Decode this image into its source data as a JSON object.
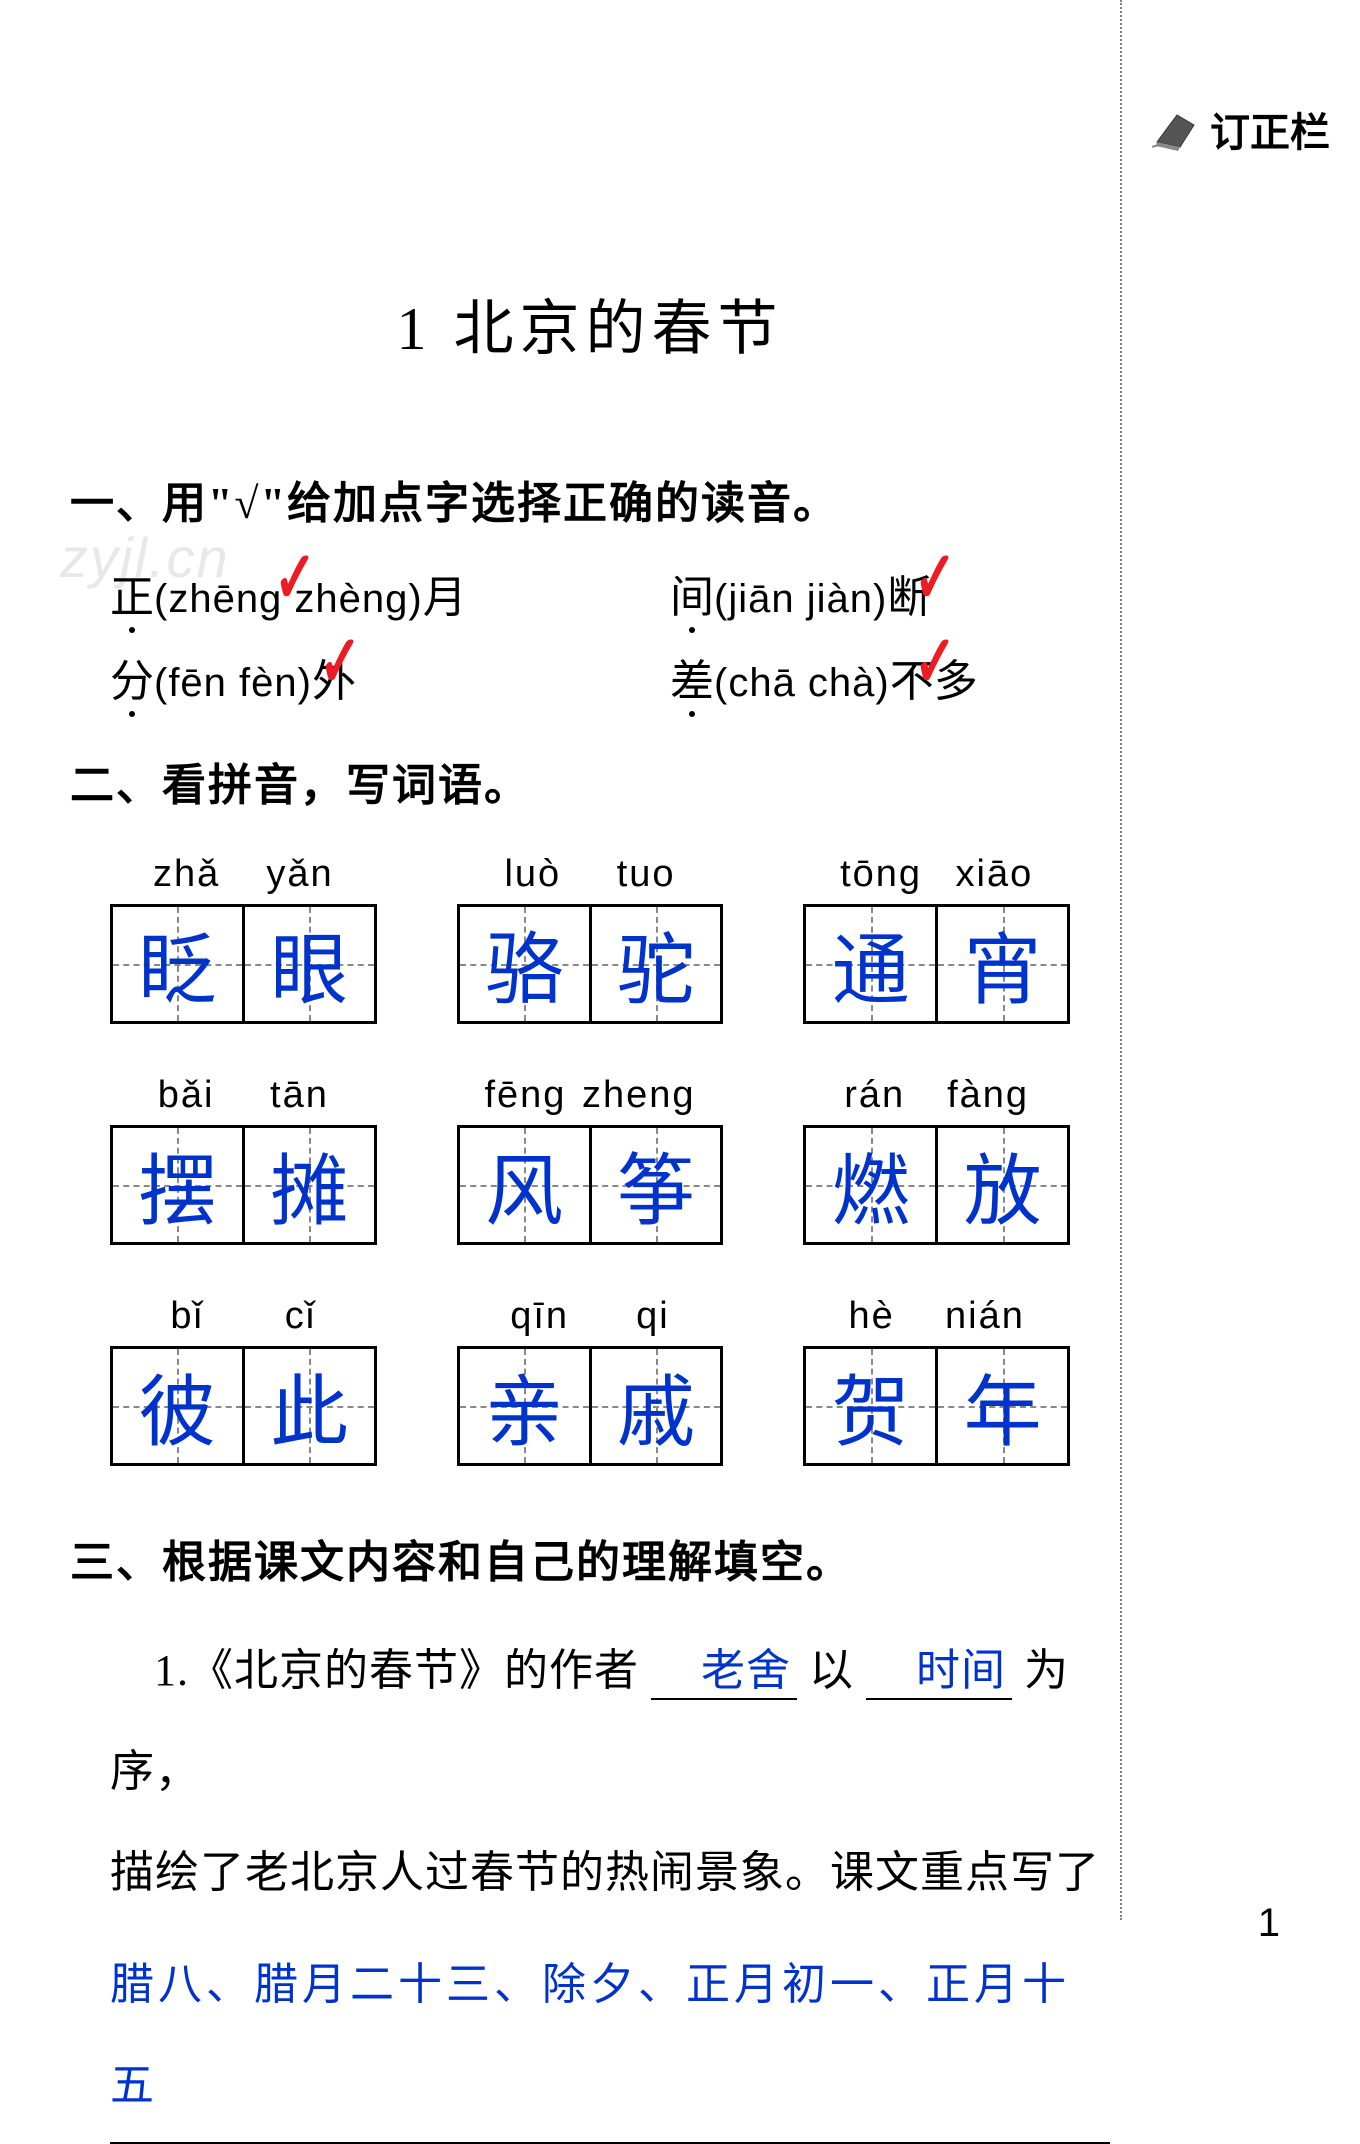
{
  "page_number": "1",
  "correction_column_label": "订正栏",
  "watermark": "zyjl.cn",
  "title": "1  北京的春节",
  "colors": {
    "text": "#000000",
    "answer_blue": "#0033cc",
    "check_red": "#ed1c24",
    "grid_dash": "#888888",
    "watermark": "#e8e8e8",
    "border_dotted": "#808080",
    "background": "#ffffff"
  },
  "typography": {
    "title_fontsize": 60,
    "section_header_fontsize": 44,
    "body_fontsize": 44,
    "pinyin_fontsize": 40,
    "charbox_fontsize": 78,
    "correction_label_fontsize": 40
  },
  "sections": {
    "q1": {
      "header": "一、用\"√\"给加点字选择正确的读音。",
      "items": [
        {
          "char": "正",
          "choices": "(zhēng   zhèng)",
          "suffix": "月",
          "correct_index": 0
        },
        {
          "char": "间",
          "choices": "(jiān   jiàn)",
          "suffix": "断",
          "correct_index": 1
        },
        {
          "char": "分",
          "choices": "(fēn   fèn)",
          "suffix": "外",
          "correct_index": 1
        },
        {
          "char": "差",
          "choices": "(chā   chà)",
          "suffix": "不多",
          "correct_index": 1
        }
      ]
    },
    "q2": {
      "header": "二、看拼音，写词语。",
      "words": [
        {
          "pinyin": [
            "zhǎ",
            "yǎn"
          ],
          "chars": [
            "眨",
            "眼"
          ]
        },
        {
          "pinyin": [
            "luò",
            "tuo"
          ],
          "chars": [
            "骆",
            "驼"
          ]
        },
        {
          "pinyin": [
            "tōng",
            "xiāo"
          ],
          "chars": [
            "通",
            "宵"
          ]
        },
        {
          "pinyin": [
            "bǎi",
            "tān"
          ],
          "chars": [
            "摆",
            "摊"
          ]
        },
        {
          "pinyin": [
            "fēng",
            "zheng"
          ],
          "chars": [
            "风",
            "筝"
          ]
        },
        {
          "pinyin": [
            "rán",
            "fàng"
          ],
          "chars": [
            "燃",
            "放"
          ]
        },
        {
          "pinyin": [
            "bǐ",
            "cǐ"
          ],
          "chars": [
            "彼",
            "此"
          ]
        },
        {
          "pinyin": [
            "qīn",
            "qi"
          ],
          "chars": [
            "亲",
            "戚"
          ]
        },
        {
          "pinyin": [
            "hè",
            "nián"
          ],
          "chars": [
            "贺",
            "年"
          ]
        }
      ]
    },
    "q3": {
      "header": "三、根据课文内容和自己的理解填空。",
      "para_prefix": "1.《北京的春节》的作者",
      "blank1": "老舍",
      "mid1": "以",
      "blank2": "时间",
      "mid2": "为序，",
      "line2": "描绘了老北京人过春节的热闹景象。课文重点写了",
      "blank_line": "腊八、腊月二十三、除夕、正月初一、正月十五"
    }
  }
}
